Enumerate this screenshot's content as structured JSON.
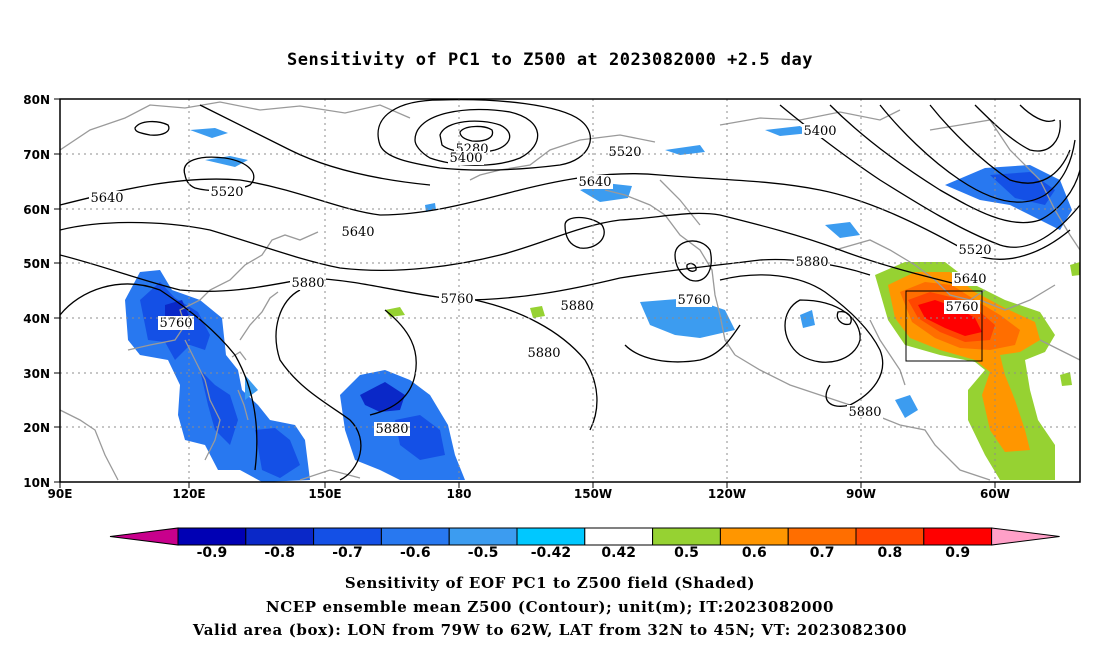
{
  "title": "Sensitivity of PC1 to Z500 at 2023082000 +2.5 day",
  "axes": {
    "lon_labels": [
      "90E",
      "120E",
      "150E",
      "180",
      "150W",
      "120W",
      "90W",
      "60W"
    ],
    "lat_labels": [
      "80N",
      "70N",
      "60N",
      "50N",
      "40N",
      "30N",
      "20N",
      "10N"
    ]
  },
  "contour_labels": [
    "5280",
    "5400",
    "5400",
    "5520",
    "5520",
    "5520",
    "5640",
    "5640",
    "5640",
    "5640",
    "5760",
    "5760",
    "5760",
    "5760",
    "5880",
    "5880",
    "5880",
    "5880",
    "5880",
    "5880"
  ],
  "valid_box": {
    "lon_from": "79W",
    "lon_to": "62W",
    "lat_from": "32N",
    "lat_to": "45N"
  },
  "colorbar": {
    "labels": [
      "-0.9",
      "-0.8",
      "-0.7",
      "-0.6",
      "-0.5",
      "-0.42",
      "0.42",
      "0.5",
      "0.6",
      "0.7",
      "0.8",
      "0.9"
    ],
    "colors": [
      "#c8008c",
      "#0000b4",
      "#0a28c8",
      "#1450e6",
      "#2878f0",
      "#3c9cf0",
      "#00c8ff",
      "#ffffff",
      "#96d232",
      "#ff9600",
      "#ff6e00",
      "#ff4600",
      "#ff0000",
      "#ffa0c8"
    ]
  },
  "captions": {
    "line1": "Sensitivity of EOF PC1 to Z500 field (Shaded)",
    "line2": "NCEP ensemble mean Z500 (Contour); unit(m); IT:2023082000",
    "line3": "Valid area (box): LON from 79W to 62W, LAT from 32N to 45N; VT: 2023082300"
  }
}
